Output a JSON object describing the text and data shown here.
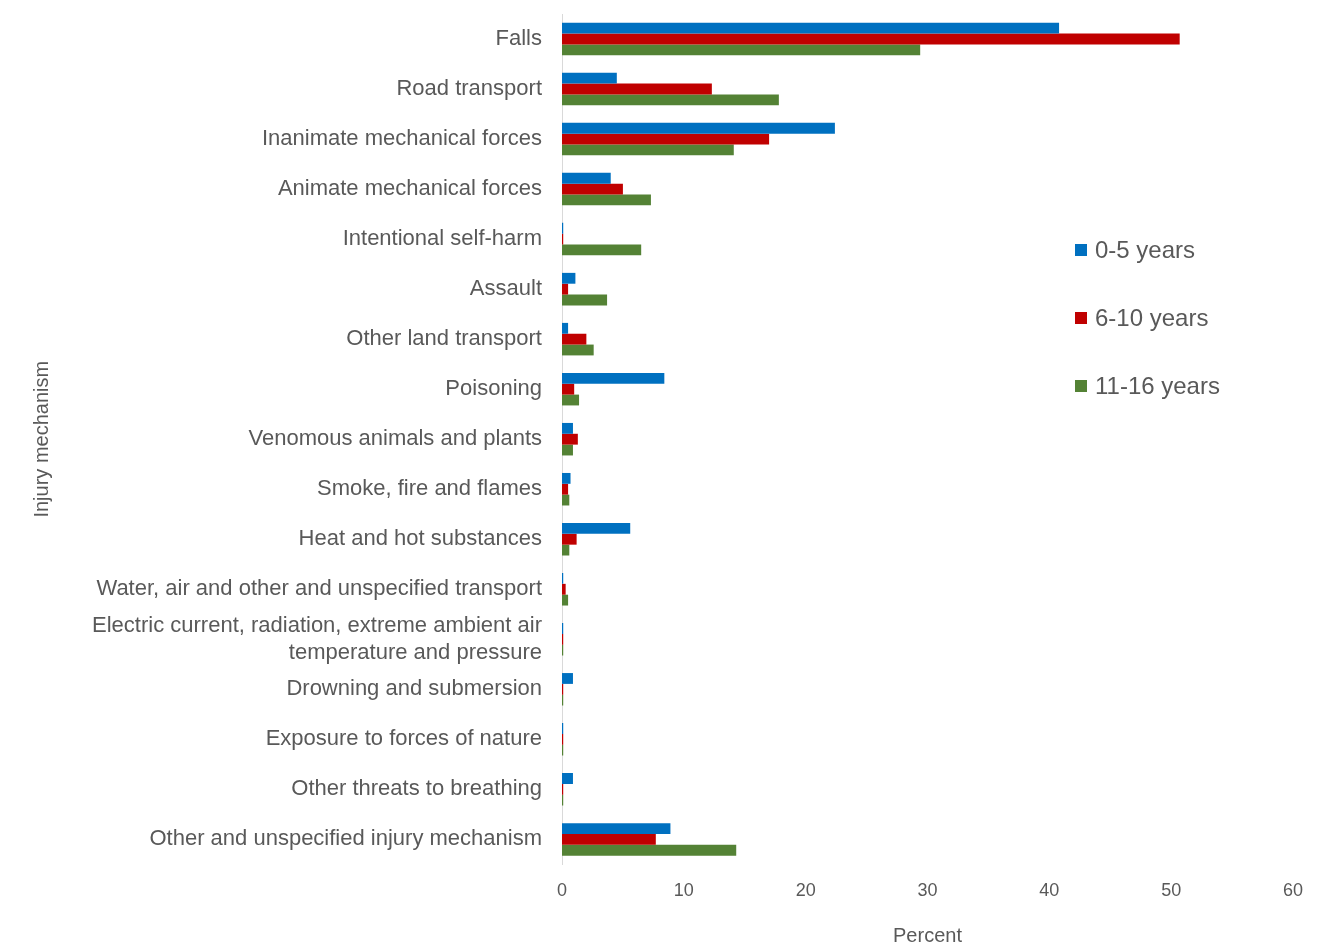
{
  "chart_data": {
    "type": "bar",
    "orientation": "horizontal",
    "xlabel": "Percent",
    "ylabel": "Injury mechanism",
    "categories": [
      "Falls",
      "Road transport",
      "Inanimate mechanical forces",
      "Animate mechanical forces",
      "Intentional self-harm",
      "Assault",
      "Other land transport",
      "Poisoning",
      "Venomous animals and plants",
      "Smoke, fire and flames",
      "Heat and hot substances",
      "Water, air and other and unspecified transport",
      "Electric current, radiation, extreme ambient air temperature and pressure",
      "Drowning and submersion",
      "Exposure to forces of nature",
      "Other threats to breathing",
      "Other and unspecified injury mechanism"
    ],
    "series": [
      {
        "name": "0-5 years",
        "color": "#0070c0",
        "values": [
          40.8,
          4.5,
          22.4,
          4.0,
          0.1,
          1.1,
          0.5,
          8.4,
          0.9,
          0.7,
          5.6,
          0.1,
          0.1,
          0.9,
          0.1,
          0.9,
          8.9
        ]
      },
      {
        "name": "6-10 years",
        "color": "#c00000",
        "values": [
          50.7,
          12.3,
          17.0,
          5.0,
          0.1,
          0.5,
          2.0,
          1.0,
          1.3,
          0.5,
          1.2,
          0.3,
          0.1,
          0.1,
          0.1,
          0.1,
          7.7
        ]
      },
      {
        "name": "11-16 years",
        "color": "#548235",
        "values": [
          29.4,
          17.8,
          14.1,
          7.3,
          6.5,
          3.7,
          2.6,
          1.4,
          0.9,
          0.6,
          0.6,
          0.5,
          0.1,
          0.1,
          0.1,
          0.1,
          14.3
        ]
      }
    ],
    "xlim": [
      0,
      60
    ],
    "xticks": [
      0,
      10,
      20,
      30,
      40,
      50,
      60
    ],
    "grid": false,
    "legend": "right"
  }
}
